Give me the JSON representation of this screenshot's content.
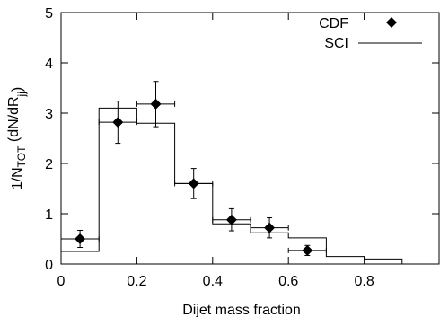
{
  "chart_data": {
    "type": "step",
    "xlabel": "Dijet mass fraction",
    "ylabel_parts": {
      "lead": "1/N",
      "sub1": "TOT",
      "mid": " (dN/dR",
      "sub2": "jj",
      "tail": ")"
    },
    "xlim": [
      0,
      1.0
    ],
    "ylim": [
      0,
      5
    ],
    "xticks": [
      0,
      0.2,
      0.4,
      0.6,
      0.8
    ],
    "xtick_labels": [
      "0",
      "0.2",
      "0.4",
      "0.6",
      "0.8"
    ],
    "yticks": [
      0,
      1,
      2,
      3,
      4,
      5
    ],
    "ytick_labels": [
      "0",
      "1",
      "2",
      "3",
      "4",
      "5"
    ],
    "legend_position": "top-right",
    "series": [
      {
        "name": "CDF",
        "kind": "points-with-errors",
        "marker": "diamond",
        "x": [
          0.05,
          0.15,
          0.25,
          0.35,
          0.45,
          0.55,
          0.65
        ],
        "y": [
          0.5,
          2.82,
          3.18,
          1.6,
          0.88,
          0.72,
          0.27
        ],
        "yerr": [
          0.17,
          0.42,
          0.45,
          0.3,
          0.22,
          0.2,
          0.1
        ],
        "xerr": [
          0.05,
          0.05,
          0.05,
          0.05,
          0.05,
          0.05,
          0.05
        ]
      },
      {
        "name": "SCI",
        "kind": "histogram",
        "bin_edges": [
          0,
          0.1,
          0.2,
          0.3,
          0.4,
          0.5,
          0.6,
          0.7,
          0.8,
          0.9
        ],
        "values": [
          0.25,
          3.1,
          2.8,
          1.6,
          0.8,
          0.62,
          0.52,
          0.15,
          0.1
        ]
      }
    ],
    "colors": {
      "line": "#000000"
    }
  }
}
